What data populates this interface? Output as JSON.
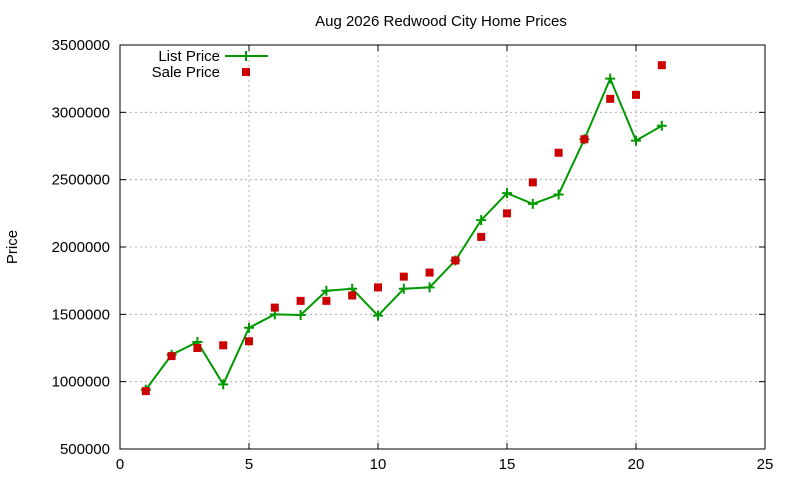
{
  "chart_data": {
    "type": "line",
    "title": "Aug 2026 Redwood City Home Prices",
    "xlabel": "",
    "ylabel": "Price",
    "xlim": [
      0,
      25
    ],
    "ylim": [
      500000,
      3500000
    ],
    "x_ticks": [
      0,
      5,
      10,
      15,
      20,
      25
    ],
    "y_ticks": [
      500000,
      1000000,
      1500000,
      2000000,
      2500000,
      3000000,
      3500000
    ],
    "x_tick_labels": [
      "0",
      "5",
      "10",
      "15",
      "20",
      "25"
    ],
    "y_tick_labels": [
      "500000",
      "1000000",
      "1500000",
      "2000000",
      "2500000",
      "3000000",
      "3500000"
    ],
    "grid": true,
    "legend": "top-left",
    "series": [
      {
        "name": "List Price",
        "style": "line-with-plus-markers",
        "color": "#009900",
        "x": [
          1,
          2,
          3,
          4,
          5,
          6,
          7,
          8,
          9,
          10,
          11,
          12,
          13,
          14,
          15,
          16,
          17,
          18,
          19,
          20,
          21
        ],
        "values": [
          940000,
          1200000,
          1295000,
          980000,
          1400000,
          1500000,
          1495000,
          1675000,
          1690000,
          1490000,
          1690000,
          1700000,
          1900000,
          2200000,
          2400000,
          2320000,
          2390000,
          2800000,
          3250000,
          2790000,
          2900000
        ]
      },
      {
        "name": "Sale Price",
        "style": "square-markers",
        "color": "#cc0000",
        "x": [
          1,
          2,
          3,
          4,
          5,
          6,
          7,
          8,
          9,
          10,
          11,
          12,
          13,
          14,
          15,
          16,
          17,
          18,
          19,
          20,
          21
        ],
        "values": [
          930000,
          1190000,
          1250000,
          1270000,
          1300000,
          1550000,
          1600000,
          1600000,
          1640000,
          1700000,
          1780000,
          1810000,
          1900000,
          2075000,
          2250000,
          2480000,
          2700000,
          2800000,
          3100000,
          3130000,
          3350000
        ]
      }
    ]
  }
}
